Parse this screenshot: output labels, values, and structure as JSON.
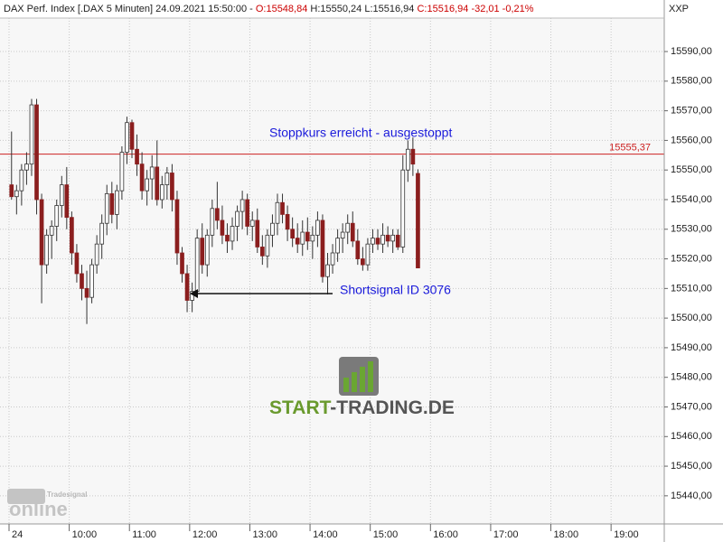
{
  "chart_data": {
    "type": "candlestick",
    "header": {
      "instrument": "DAX Perf. Index [.DAX  5 Minuten] 24.09.2021 15:50:00 -",
      "open": "O:15548,84",
      "high": "H:15550,24",
      "low": "L:15516,94",
      "close": "C:15516,94",
      "change": "-32,01 -0,21%"
    },
    "corner_label": "XXP",
    "x": [
      "09:00",
      "09:05",
      "09:10",
      "09:15",
      "09:20",
      "09:25",
      "09:30",
      "09:35",
      "09:40",
      "09:45",
      "09:50",
      "09:55",
      "10:00",
      "10:05",
      "10:10",
      "10:15",
      "10:20",
      "10:25",
      "10:30",
      "10:35",
      "10:40",
      "10:45",
      "10:50",
      "10:55",
      "11:00",
      "11:05",
      "11:10",
      "11:15",
      "11:20",
      "11:25",
      "11:30",
      "11:35",
      "11:40",
      "11:45",
      "11:50",
      "11:55",
      "12:00",
      "12:05",
      "12:10",
      "12:15",
      "12:20",
      "12:25",
      "12:30",
      "12:35",
      "12:40",
      "12:45",
      "12:50",
      "12:55",
      "13:00",
      "13:05",
      "13:10",
      "13:15",
      "13:20",
      "13:25",
      "13:30",
      "13:35",
      "13:40",
      "13:45",
      "13:50",
      "13:55",
      "14:00",
      "14:05",
      "14:10",
      "14:15",
      "14:20",
      "14:25",
      "14:30",
      "14:35",
      "14:40",
      "14:45",
      "14:50",
      "14:55",
      "15:00",
      "15:05",
      "15:10",
      "15:15",
      "15:20",
      "15:25",
      "15:30",
      "15:35",
      "15:40",
      "15:45"
    ],
    "open": [
      15545,
      15541,
      15543,
      15550,
      15552,
      15572,
      15540,
      15518,
      15528,
      15531,
      15538,
      15545,
      15534,
      15522,
      15515,
      15510,
      15507,
      15518,
      15525,
      15532,
      15542,
      15535,
      15543,
      15556,
      15566,
      15557,
      15552,
      15543,
      15547,
      15551,
      15540,
      15545,
      15549,
      15540,
      15522,
      15515,
      15506,
      15509,
      15527,
      15518,
      15528,
      15537,
      15533,
      15528,
      15526,
      15531,
      15536,
      15540,
      15531,
      15533,
      15524,
      15521,
      15528,
      15532,
      15539,
      15535,
      15530,
      15527,
      15525,
      15529,
      15526,
      15528,
      15533,
      15514,
      15518,
      15522,
      15527,
      15529,
      15532,
      15526,
      15520,
      15518,
      15525,
      15527,
      15525,
      15528,
      15526,
      15528,
      15524,
      15550,
      15557,
      15548.84
    ],
    "high": [
      15563,
      15545,
      15552,
      15556,
      15574,
      15574,
      15542,
      15530,
      15533,
      15540,
      15548,
      15551,
      15536,
      15525,
      15518,
      15516,
      15520,
      15528,
      15535,
      15545,
      15546,
      15545,
      15558,
      15568,
      15567,
      15562,
      15556,
      15550,
      15555,
      15560,
      15548,
      15551,
      15552,
      15543,
      15524,
      15518,
      15512,
      15530,
      15532,
      15530,
      15540,
      15546,
      15538,
      15532,
      15534,
      15538,
      15543,
      15542,
      15536,
      15537,
      15528,
      15530,
      15535,
      15542,
      15542,
      15538,
      15534,
      15532,
      15533,
      15534,
      15531,
      15536,
      15535,
      15522,
      15525,
      15530,
      15532,
      15535,
      15536,
      15530,
      15524,
      15527,
      15530,
      15530,
      15532,
      15531,
      15530,
      15530,
      15555,
      15560,
      15561,
      15550.24
    ],
    "low": [
      15540,
      15535,
      15538,
      15545,
      15548,
      15535,
      15505,
      15515,
      15520,
      15526,
      15534,
      15530,
      15518,
      15512,
      15506,
      15498,
      15505,
      15515,
      15520,
      15528,
      15532,
      15530,
      15540,
      15552,
      15554,
      15548,
      15540,
      15538,
      15540,
      15538,
      15537,
      15540,
      15536,
      15518,
      15512,
      15502,
      15502,
      15507,
      15515,
      15514,
      15524,
      15530,
      15525,
      15522,
      15523,
      15526,
      15530,
      15528,
      15526,
      15522,
      15518,
      15517,
      15524,
      15528,
      15532,
      15526,
      15524,
      15522,
      15521,
      15523,
      15520,
      15524,
      15512,
      15508,
      15515,
      15519,
      15522,
      15525,
      15524,
      15518,
      15516,
      15516,
      15522,
      15523,
      15522,
      15524,
      15522,
      15523,
      15522,
      15546,
      15548,
      15516.94
    ],
    "close": [
      15541,
      15543,
      15550,
      15552,
      15572,
      15540,
      15518,
      15528,
      15531,
      15538,
      15545,
      15534,
      15522,
      15515,
      15510,
      15507,
      15518,
      15525,
      15532,
      15542,
      15535,
      15543,
      15556,
      15566,
      15557,
      15552,
      15543,
      15547,
      15551,
      15540,
      15545,
      15549,
      15540,
      15522,
      15515,
      15506,
      15509,
      15527,
      15518,
      15528,
      15537,
      15533,
      15528,
      15526,
      15531,
      15536,
      15540,
      15531,
      15533,
      15524,
      15521,
      15528,
      15532,
      15539,
      15535,
      15530,
      15527,
      15525,
      15529,
      15526,
      15528,
      15533,
      15514,
      15518,
      15522,
      15527,
      15529,
      15532,
      15526,
      15520,
      15518,
      15525,
      15527,
      15525,
      15528,
      15526,
      15528,
      15524,
      15550,
      15557,
      15552,
      15516.94
    ],
    "up_color": "#ffffff",
    "down_color": "#8b1e1e",
    "outline_color": "#333333",
    "xlim": [
      "08:51",
      "19:53"
    ],
    "xticks": [
      {
        "value": "09:00",
        "label": "24"
      },
      "10:00",
      "11:00",
      "12:00",
      "13:00",
      "14:00",
      "15:00",
      "16:00",
      "17:00",
      "18:00",
      "19:00"
    ],
    "ylim": [
      15430.5,
      15601.3
    ],
    "yticks": [
      {
        "value": 15440,
        "label": "15440,00"
      },
      {
        "value": 15450,
        "label": "15450,00"
      },
      {
        "value": 15460,
        "label": "15460,00"
      },
      {
        "value": 15470,
        "label": "15470,00"
      },
      {
        "value": 15480,
        "label": "15480,00"
      },
      {
        "value": 15490,
        "label": "15490,00"
      },
      {
        "value": 15500,
        "label": "15500,00"
      },
      {
        "value": 15510,
        "label": "15510,00"
      },
      {
        "value": 15520,
        "label": "15520,00"
      },
      {
        "value": 15530,
        "label": "15530,00"
      },
      {
        "value": 15540,
        "label": "15540,00"
      },
      {
        "value": 15550,
        "label": "15550,00"
      },
      {
        "value": 15560,
        "label": "15560,00"
      },
      {
        "value": 15570,
        "label": "15570,00"
      },
      {
        "value": 15580,
        "label": "15580,00"
      },
      {
        "value": 15590,
        "label": "15590,00"
      }
    ],
    "grid": true,
    "reference_line": {
      "value": 15555.37,
      "label": "15555,37",
      "color": "#cc2222"
    },
    "annotations": [
      "Stoppkurs erreicht - ausgestoppt",
      "Shortsignal ID 3076"
    ],
    "watermark": {
      "brand_start": "START",
      "brand_rest": "-TRADING.DE",
      "vendor": "Tradesignal",
      "product": "online"
    }
  }
}
